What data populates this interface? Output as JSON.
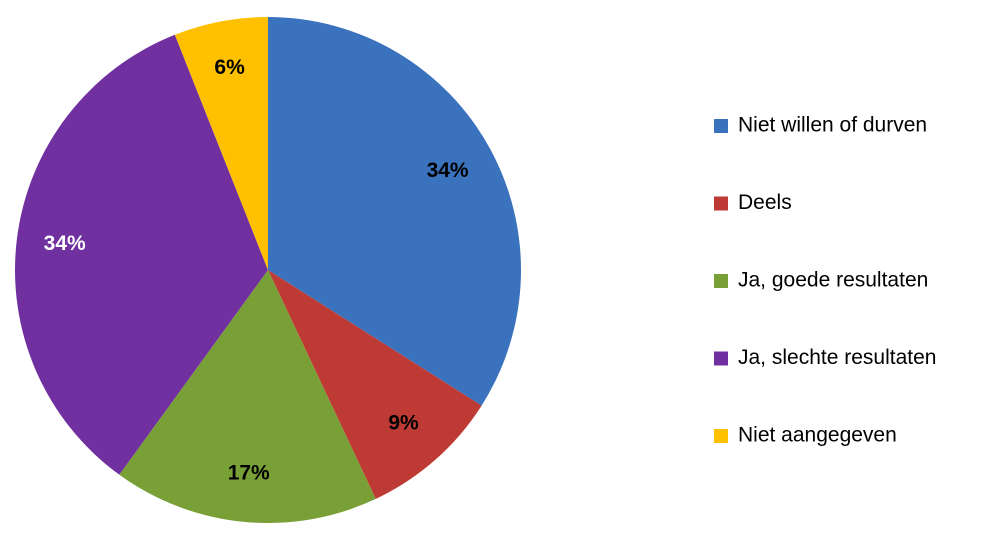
{
  "chart_data": {
    "type": "pie",
    "categories": [
      "Niet willen of durven",
      "Deels",
      "Ja, goede resultaten",
      "Ja, slechte resultaten",
      "Niet aangegeven"
    ],
    "values": [
      34,
      9,
      17,
      34,
      6
    ],
    "value_labels": [
      "34%",
      "9%",
      "17%",
      "34%",
      "6%"
    ],
    "colors": [
      "#3a72bd",
      "#be3b35",
      "#79a036",
      "#7030a0",
      "#ffc000"
    ],
    "legend": "right"
  }
}
